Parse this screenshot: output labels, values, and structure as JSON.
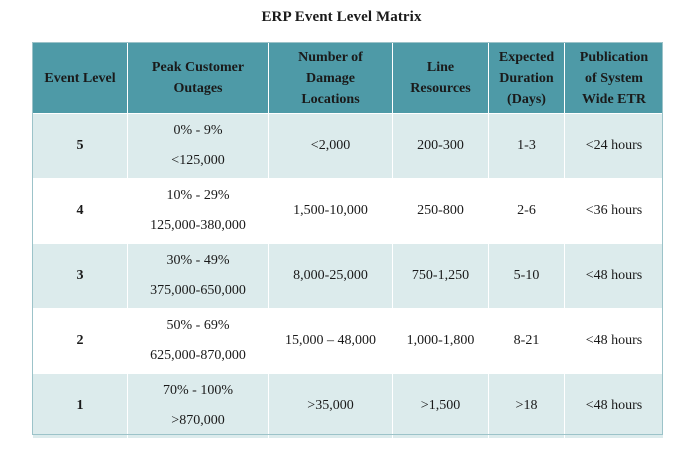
{
  "title": "ERP Event Level Matrix",
  "headers": {
    "level": "Event Level",
    "outages": [
      "Peak Customer",
      "Outages"
    ],
    "damage": [
      "Number of",
      "Damage",
      "Locations"
    ],
    "line": [
      "Line",
      "Resources"
    ],
    "duration": [
      "Expected",
      "Duration",
      "(Days)"
    ],
    "etr": [
      "Publication",
      "of System",
      "Wide ETR"
    ]
  },
  "rows": [
    {
      "level": "5",
      "outage_pct": "0% - 9%",
      "outage_count": "<125,000",
      "damage": "<2,000",
      "line": "200-300",
      "duration": "1-3",
      "etr": "<24 hours"
    },
    {
      "level": "4",
      "outage_pct": "10% - 29%",
      "outage_count": "125,000-380,000",
      "damage": "1,500-10,000",
      "line": "250-800",
      "duration": "2-6",
      "etr": "<36 hours"
    },
    {
      "level": "3",
      "outage_pct": "30% - 49%",
      "outage_count": "375,000-650,000",
      "damage": "8,000-25,000",
      "line": "750-1,250",
      "duration": "5-10",
      "etr": "<48 hours"
    },
    {
      "level": "2",
      "outage_pct": "50% - 69%",
      "outage_count": "625,000-870,000",
      "damage": "15,000 – 48,000",
      "line": "1,000-1,800",
      "duration": "8-21",
      "etr": "<48 hours"
    },
    {
      "level": "1",
      "outage_pct": "70% - 100%",
      "outage_count": ">870,000",
      "damage": ">35,000",
      "line": ">1,500",
      "duration": ">18",
      "etr": "<48 hours"
    }
  ]
}
